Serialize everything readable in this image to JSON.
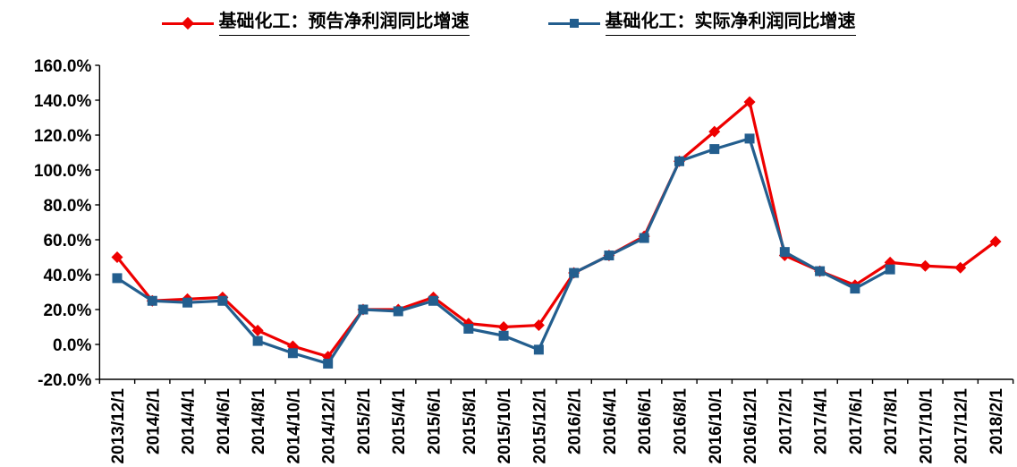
{
  "legend": [
    {
      "label": "基础化工：预告净利润同比增速",
      "color": "#EE0000",
      "marker": "diamond"
    },
    {
      "label": "基础化工：实际净利润同比增速",
      "color": "#235E8E",
      "marker": "square"
    }
  ],
  "chart_data": {
    "type": "line",
    "title": "",
    "xlabel": "",
    "ylabel": "",
    "categories": [
      "2013/12/1",
      "2014/2/1",
      "2014/4/1",
      "2014/6/1",
      "2014/8/1",
      "2014/10/1",
      "2014/12/1",
      "2015/2/1",
      "2015/4/1",
      "2015/6/1",
      "2015/8/1",
      "2015/10/1",
      "2015/12/1",
      "2016/2/1",
      "2016/4/1",
      "2016/6/1",
      "2016/8/1",
      "2016/10/1",
      "2016/12/1",
      "2017/2/1",
      "2017/4/1",
      "2017/6/1",
      "2017/8/1",
      "2017/10/1",
      "2017/12/1",
      "2018/2/1"
    ],
    "series": [
      {
        "name": "基础化工：预告净利润同比增速",
        "color": "#EE0000",
        "marker": "diamond",
        "values": [
          50,
          25,
          26,
          27,
          8,
          -1,
          -7,
          20,
          20,
          27,
          12,
          10,
          11,
          41,
          51,
          62,
          105,
          122,
          139,
          51,
          42,
          34,
          47,
          45,
          44,
          59
        ]
      },
      {
        "name": "基础化工：实际净利润同比增速",
        "color": "#235E8E",
        "marker": "square",
        "values": [
          38,
          25,
          24,
          25,
          2,
          -5,
          -11,
          20,
          19,
          25,
          9,
          5,
          -3,
          41,
          51,
          61,
          105,
          112,
          118,
          53,
          42,
          32,
          43,
          null,
          null,
          null
        ]
      }
    ],
    "ylim": [
      -20,
      160
    ],
    "ytick_step": 20,
    "ytick_labels": [
      "160.0%",
      "140.0%",
      "120.0%",
      "100.0%",
      "80.0%",
      "60.0%",
      "40.0%",
      "20.0%",
      "0.0%",
      "-20.0%"
    ],
    "unit": "percent",
    "grid": false,
    "legend_position": "top-center"
  }
}
